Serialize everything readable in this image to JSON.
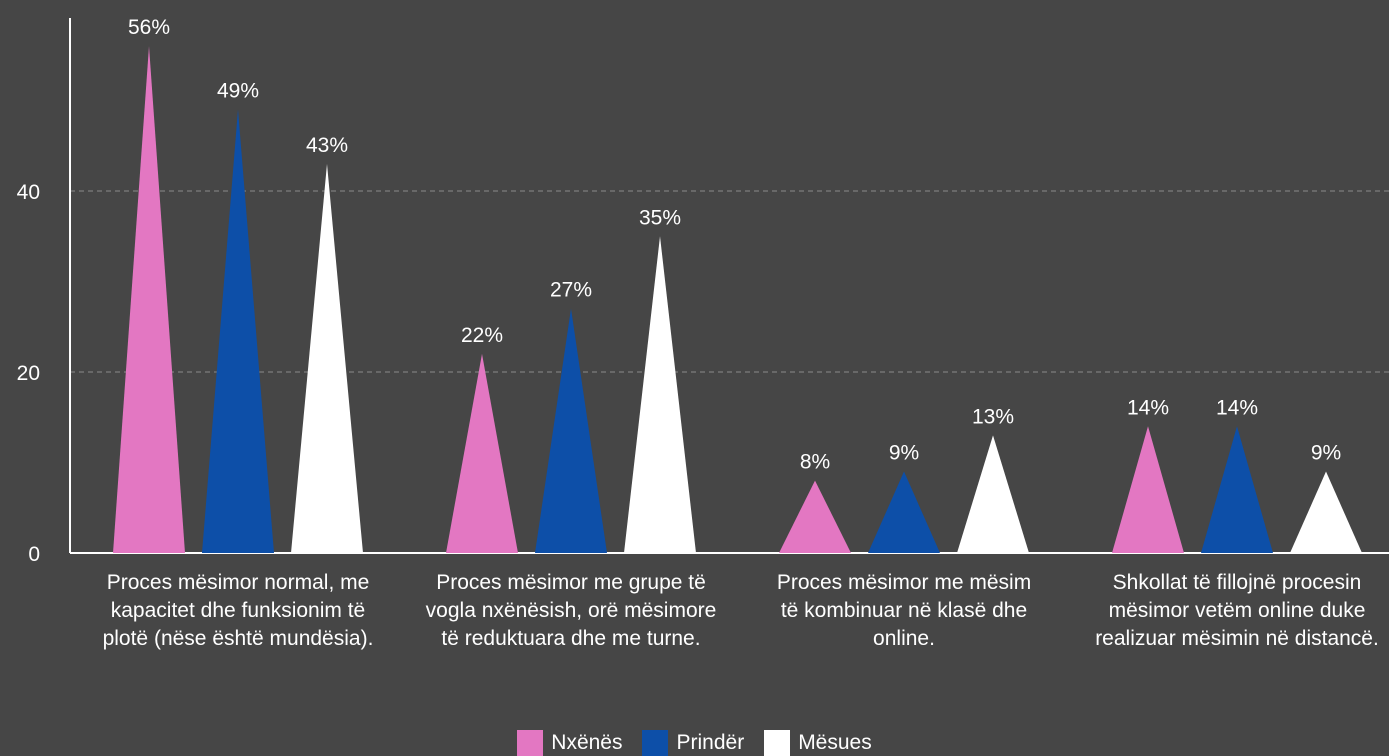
{
  "chart_data": {
    "type": "bar",
    "categories": [
      "Proces mësimor normal, me kapacitet dhe funksionim të plotë (nëse është mundësia).",
      "Proces mësimor me grupe të vogla nxënësish, orë mësimore të reduktuara dhe me turne.",
      "Proces mësimor me mësim të kombinuar në klasë dhe online.",
      "Shkollat të fillojnë procesin mësimor vetëm online duke realizuar mësimin në distancë."
    ],
    "series": [
      {
        "name": "Nxënës",
        "color": "#e377c2",
        "values": [
          56,
          22,
          8,
          14
        ],
        "labels": [
          "56%",
          "22%",
          "8%",
          "14%"
        ]
      },
      {
        "name": "Prindër",
        "color": "#0d4fa8",
        "values": [
          49,
          27,
          9,
          14
        ],
        "labels": [
          "49%",
          "27%",
          "9%",
          "14%"
        ]
      },
      {
        "name": "Mësues",
        "color": "#ffffff",
        "values": [
          43,
          35,
          13,
          9
        ],
        "labels": [
          "43%",
          "35%",
          "13%",
          "9%"
        ]
      }
    ],
    "yticks": [
      "0",
      "20",
      "40"
    ],
    "ytick_values": [
      0,
      20,
      40
    ],
    "ylim": [
      0,
      60
    ],
    "grid": true,
    "legend_position": "bottom-center",
    "bar_shape": "triangle"
  }
}
